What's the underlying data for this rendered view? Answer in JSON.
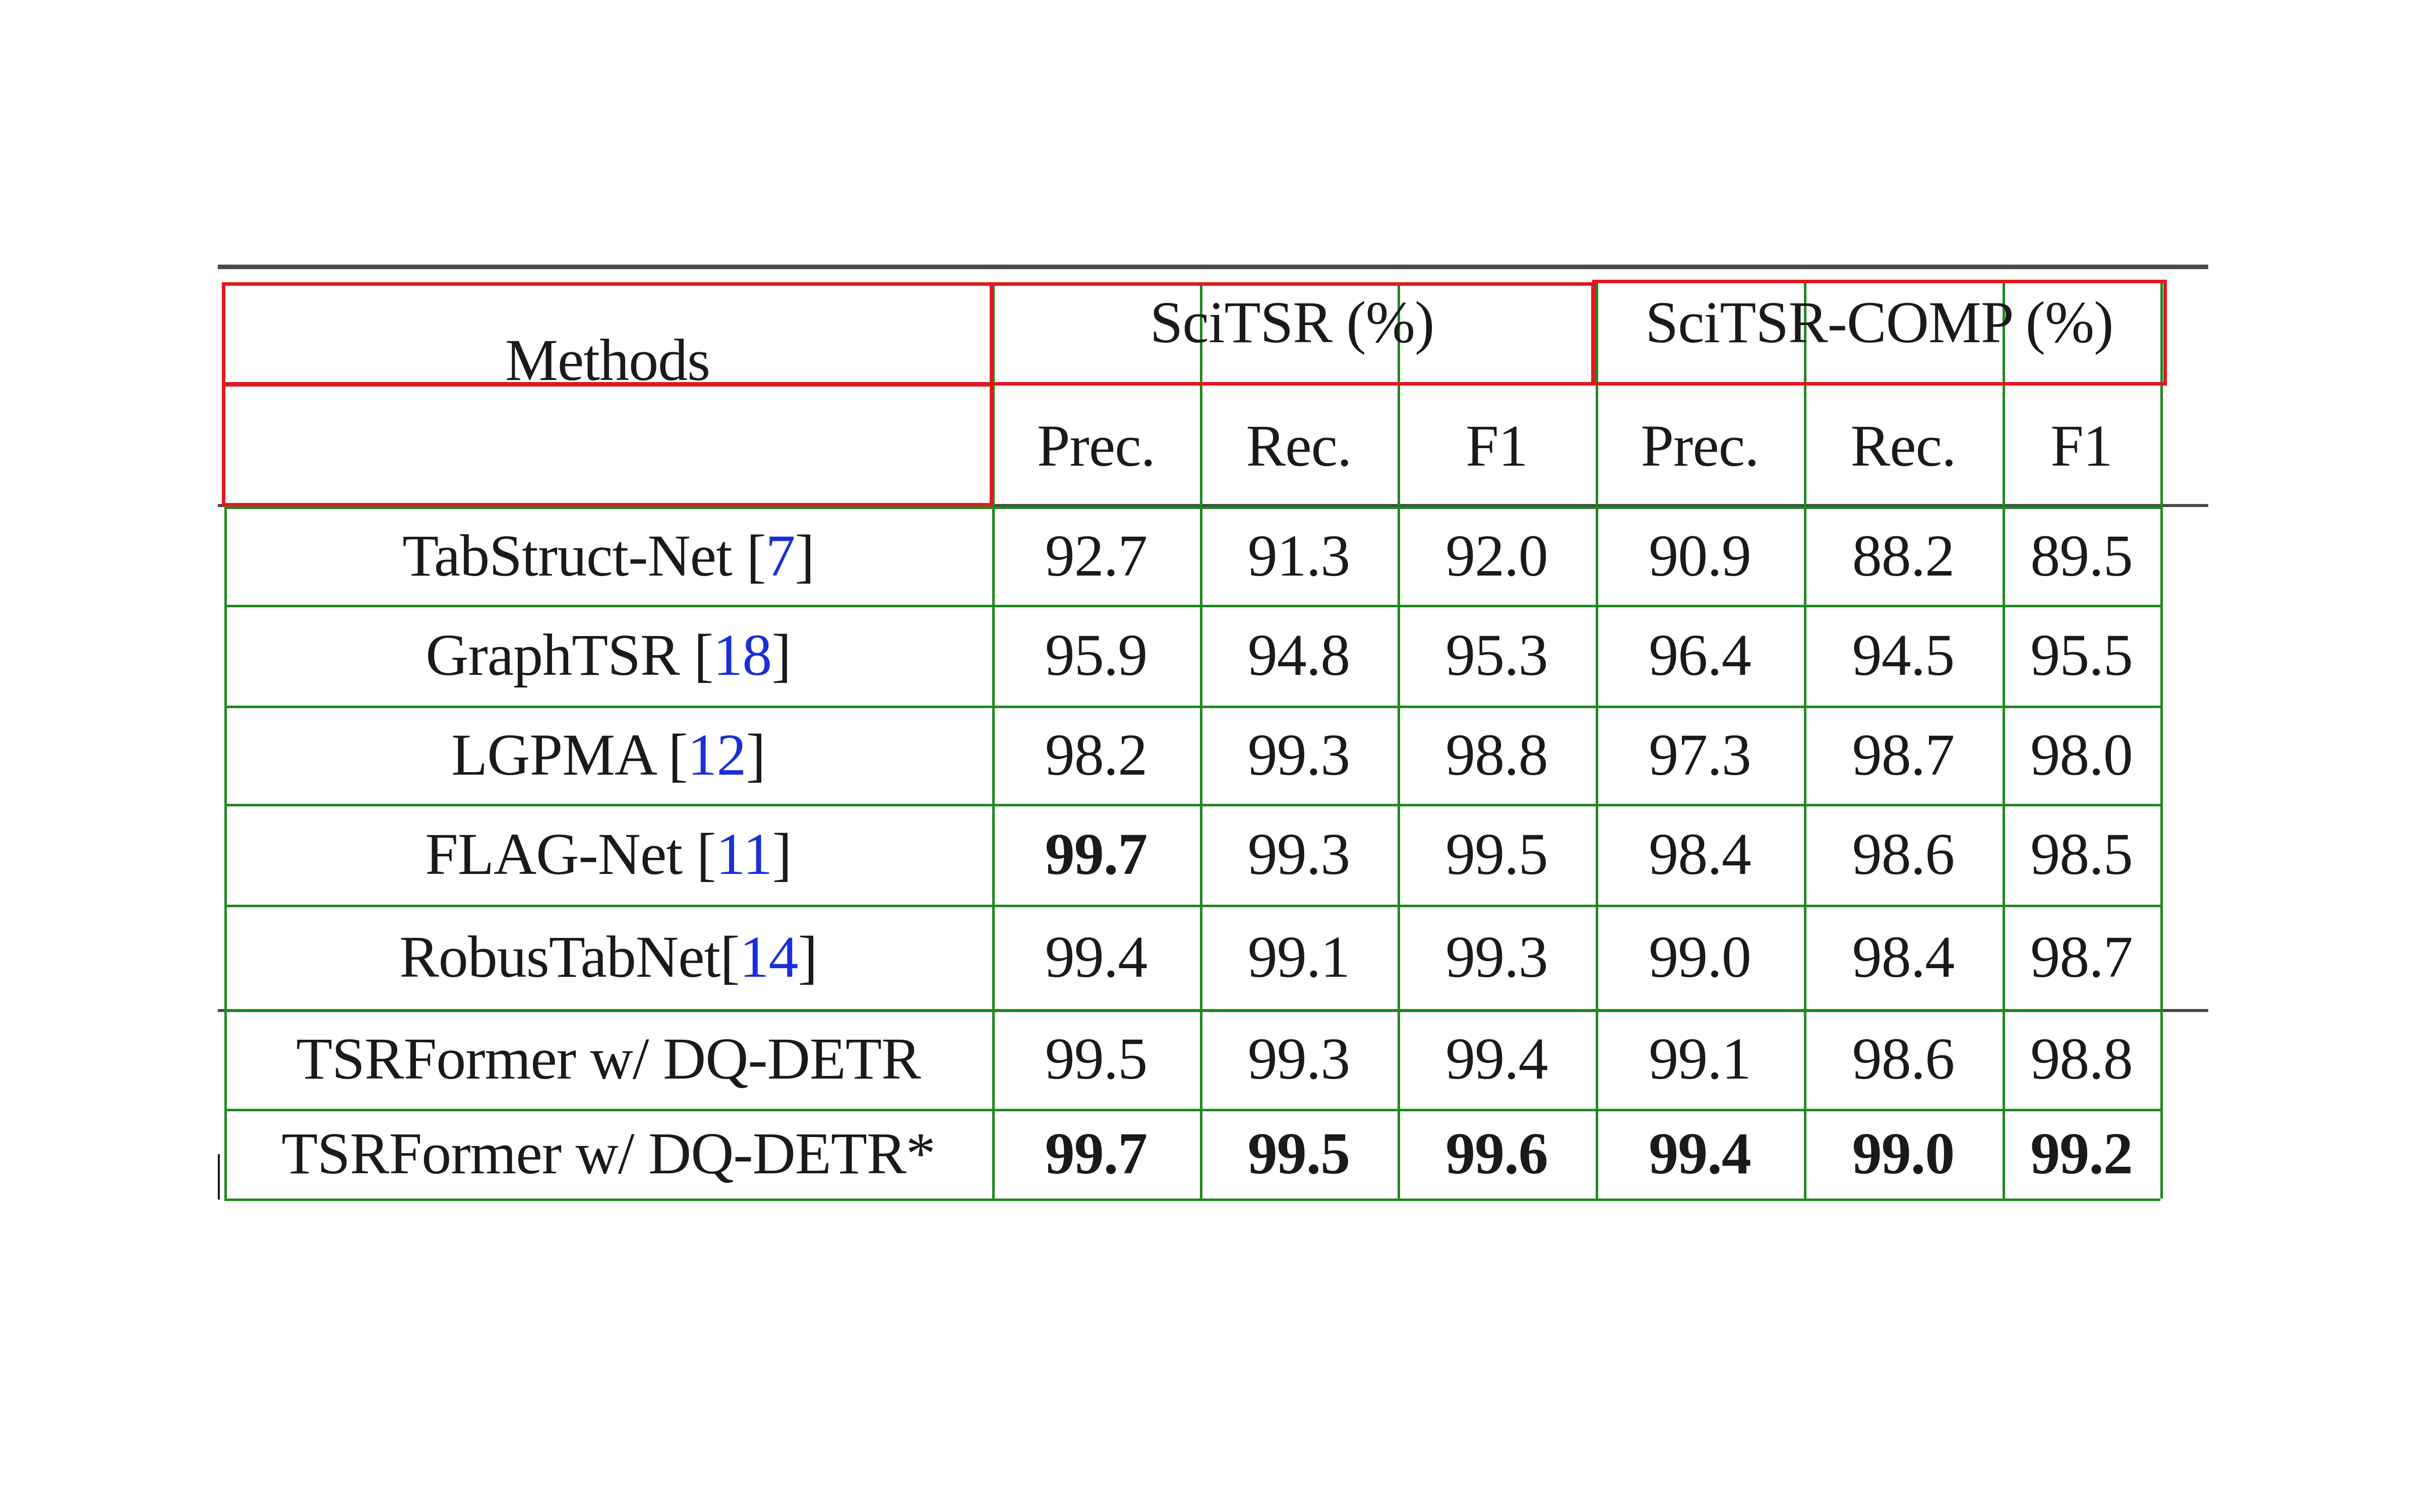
{
  "table": {
    "methods_header": "Methods",
    "groups": [
      {
        "label": "SciTSR (%)",
        "columns": [
          "Prec.",
          "Rec.",
          "F1"
        ]
      },
      {
        "label": "SciTSR-COMP (%)",
        "columns": [
          "Prec.",
          "Rec.",
          "F1"
        ]
      }
    ],
    "rows": [
      {
        "method": "TabStruct-Net [",
        "ref": "7",
        "close": "]",
        "values": [
          "92.7",
          "91.3",
          "92.0",
          "90.9",
          "88.2",
          "89.5"
        ],
        "bold": [
          false,
          false,
          false,
          false,
          false,
          false
        ]
      },
      {
        "method": "GraphTSR [",
        "ref": "18",
        "close": "]",
        "values": [
          "95.9",
          "94.8",
          "95.3",
          "96.4",
          "94.5",
          "95.5"
        ],
        "bold": [
          false,
          false,
          false,
          false,
          false,
          false
        ]
      },
      {
        "method": "LGPMA [",
        "ref": "12",
        "close": "]",
        "values": [
          "98.2",
          "99.3",
          "98.8",
          "97.3",
          "98.7",
          "98.0"
        ],
        "bold": [
          false,
          false,
          false,
          false,
          false,
          false
        ]
      },
      {
        "method": "FLAG-Net [",
        "ref": "11",
        "close": "]",
        "values": [
          "99.7",
          "99.3",
          "99.5",
          "98.4",
          "98.6",
          "98.5"
        ],
        "bold": [
          true,
          false,
          false,
          false,
          false,
          false
        ]
      },
      {
        "method": "RobusTabNet[",
        "ref": "14",
        "close": "]",
        "values": [
          "99.4",
          "99.1",
          "99.3",
          "99.0",
          "98.4",
          "98.7"
        ],
        "bold": [
          false,
          false,
          false,
          false,
          false,
          false
        ]
      },
      {
        "method": "TSRFormer w/ DQ-DETR",
        "ref": "",
        "close": "",
        "values": [
          "99.5",
          "99.3",
          "99.4",
          "99.1",
          "98.6",
          "98.8"
        ],
        "bold": [
          false,
          false,
          false,
          false,
          false,
          false
        ]
      },
      {
        "method": "TSRFormer w/ DQ-DETR*",
        "ref": "",
        "close": "",
        "values": [
          "99.7",
          "99.5",
          "99.6",
          "99.4",
          "99.0",
          "99.2"
        ],
        "bold": [
          true,
          true,
          true,
          true,
          true,
          true
        ]
      }
    ]
  },
  "colors": {
    "cell_border": "#1f8a1f",
    "header_box": "#e0191f",
    "reference": "#1a2fd6",
    "rule": "#4a4a4a"
  }
}
